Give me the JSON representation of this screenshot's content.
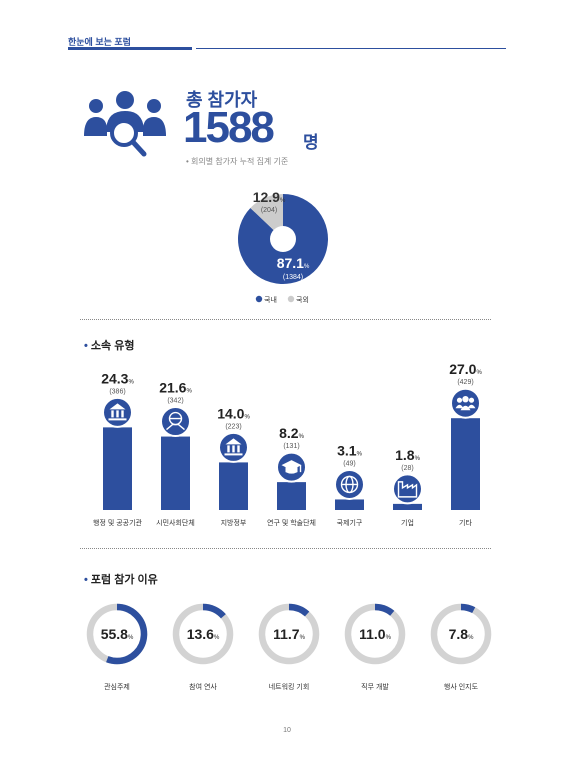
{
  "header": {
    "title": "한눈에 보는 포럼"
  },
  "total": {
    "label": "총 참가자",
    "value": "1588",
    "unit": "명",
    "note": "• 회의별 참가자 누적 집계 기준"
  },
  "colors": {
    "primary": "#2d4f9e",
    "secondary": "#cccccc",
    "ring_track": "#d3d3d3"
  },
  "icons": [
    "people-group-icon",
    "magnifier-icon",
    "government-building-icon",
    "handshake-globe-icon",
    "museum-icon",
    "graduation-cap-icon",
    "globe-icon",
    "factory-icon",
    "people-icon"
  ],
  "sections": {
    "affiliation": "소속 유형",
    "reasons": "포럼 참가 이유"
  },
  "page_number": "10",
  "chart_data": [
    {
      "type": "pie",
      "categories": [
        "국내",
        "국외"
      ],
      "values": [
        87.1,
        12.9
      ],
      "counts": [
        "(1384)",
        "(204)"
      ],
      "value_labels": [
        "87.1",
        "12.9"
      ],
      "unit": "%",
      "legend": "bottom"
    },
    {
      "type": "bar",
      "categories": [
        "행정 및 공공기관",
        "시민사회단체",
        "지방정부",
        "연구 및 학술단체",
        "국제기구",
        "기업",
        "기타"
      ],
      "values": [
        24.3,
        21.6,
        14.0,
        8.2,
        3.1,
        1.8,
        27.0
      ],
      "value_labels": [
        "24.3",
        "21.6",
        "14.0",
        "8.2",
        "3.1",
        "1.8",
        "27.0"
      ],
      "counts": [
        "(386)",
        "(342)",
        "(223)",
        "(131)",
        "(49)",
        "(28)",
        "(429)"
      ],
      "unit": "%",
      "icons": [
        "government-building-icon",
        "handshake-globe-icon",
        "museum-icon",
        "graduation-cap-icon",
        "globe-icon",
        "factory-icon",
        "people-icon"
      ],
      "ylim": [
        0,
        30
      ]
    },
    {
      "type": "pie",
      "categories": [
        "관심주제",
        "참여 연사",
        "네트워킹 기회",
        "직무 개발",
        "행사 인지도"
      ],
      "values": [
        55.8,
        13.6,
        11.7,
        11.0,
        7.8
      ],
      "value_labels": [
        "55.8",
        "13.6",
        "11.7",
        "11.0",
        "7.8"
      ],
      "unit": "%"
    }
  ]
}
